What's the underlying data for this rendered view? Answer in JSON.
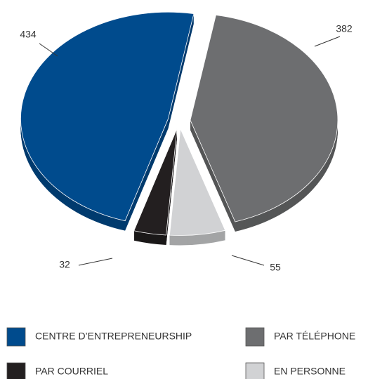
{
  "chart_data": {
    "type": "pie",
    "categories": [
      "PAR TÉLÉPHONE",
      "EN PERSONNE",
      "PAR COURRIEL",
      "CENTRE D’ENTREPRENEURSHIP"
    ],
    "values": [
      382,
      55,
      32,
      434
    ],
    "colors": [
      "#6d6e70",
      "#d1d2d4",
      "#231f20",
      "#004b8d"
    ]
  }
}
